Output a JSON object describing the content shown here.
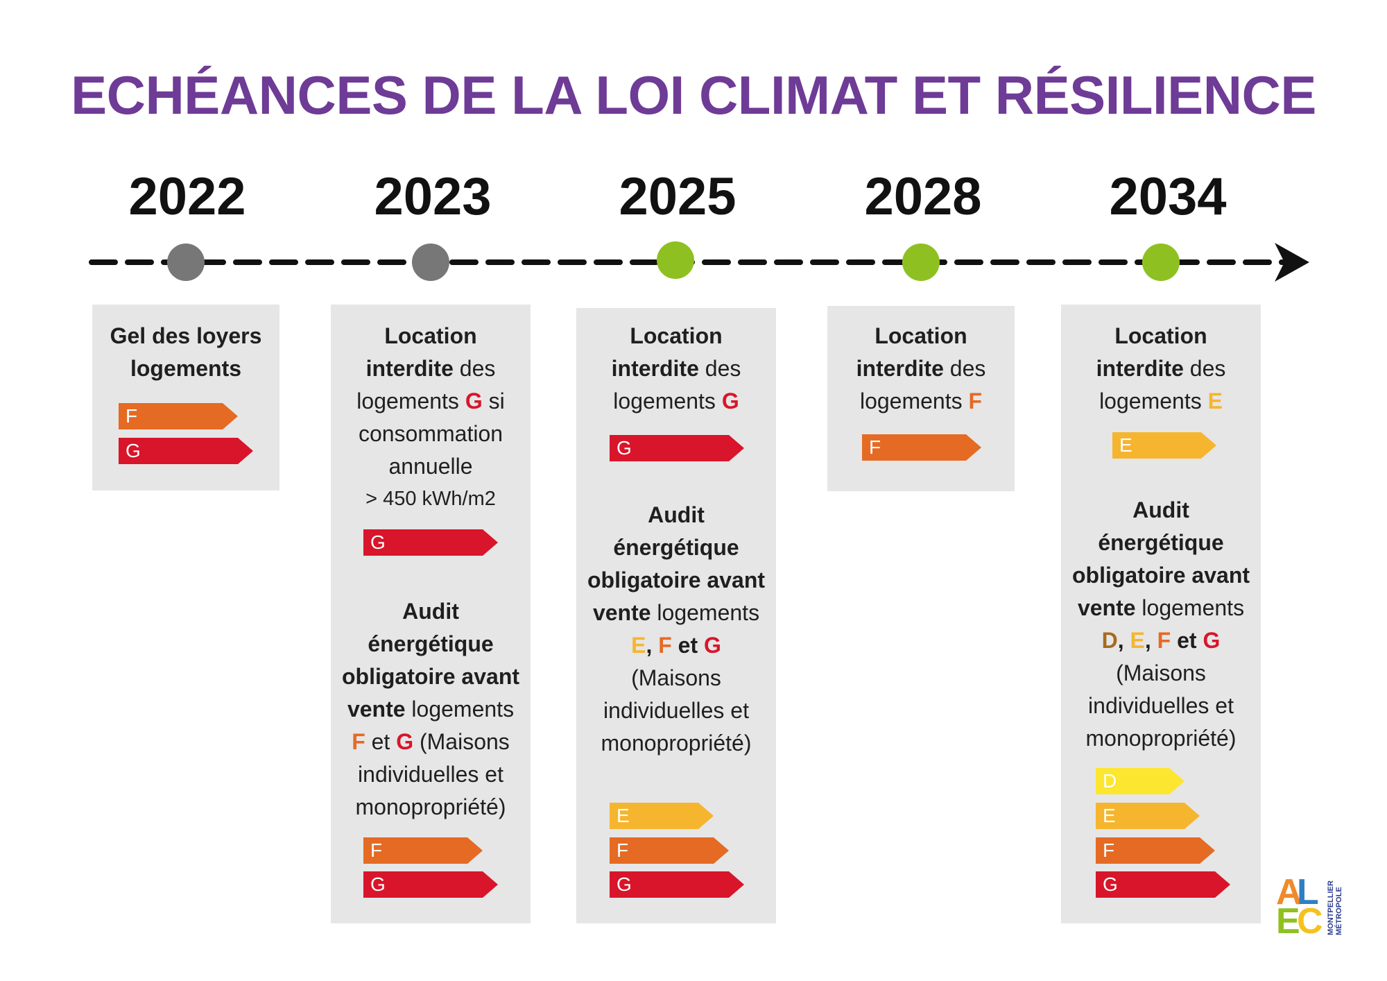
{
  "title": "ECHÉANCES DE LA LOI CLIMAT ET RÉSILIENCE",
  "colors": {
    "title": "#6e3b96",
    "milestone_past": "#777777",
    "milestone_future": "#8fc021",
    "box_bg": "#e6e6e6",
    "D": "#fce630",
    "E": "#f6b52e",
    "F": "#e56a24",
    "G": "#d8152a"
  },
  "years": [
    "2022",
    "2023",
    "2025",
    "2028",
    "2034"
  ],
  "col2022": {
    "heading": "Gel des loyers logements",
    "bars": [
      "F",
      "G"
    ]
  },
  "col2023": {
    "loc_title": "Location",
    "loc_bold": "interdite",
    "loc_rest": " des",
    "loc_line3_a": "logements ",
    "loc_letter": "G",
    "loc_line3_b": " si",
    "loc_line4": "consommation",
    "loc_line5": "annuelle",
    "loc_line6": "> 450 kWh/m2",
    "loc_bar": "G",
    "audit_1": "Audit",
    "audit_2": "énergétique",
    "audit_3": "obligatoire avant",
    "audit_4_bold": "vente",
    "audit_4_rest": " logements",
    "audit_5_F": "F",
    "audit_5_et": " et ",
    "audit_5_G": "G",
    "audit_5_rest": " (Maisons",
    "audit_6": "individuelles et",
    "audit_7": "monopropriété)",
    "audit_bars": [
      "F",
      "G"
    ]
  },
  "col2025": {
    "loc_title": "Location",
    "loc_bold": "interdite",
    "loc_rest": " des",
    "loc_line3_a": "logements ",
    "loc_letter": "G",
    "loc_bar": "G",
    "audit_1": "Audit",
    "audit_2": "énergétique",
    "audit_3": "obligatoire avant",
    "audit_4_bold": "vente",
    "audit_4_rest": " logements",
    "audit_5_E": "E",
    "audit_5_comma": ", ",
    "audit_5_F": "F",
    "audit_5_et": " et ",
    "audit_5_G": "G",
    "audit_6": "(Maisons",
    "audit_7": "individuelles et",
    "audit_8": "monopropriété)",
    "audit_bars": [
      "E",
      "F",
      "G"
    ]
  },
  "col2028": {
    "loc_title": "Location",
    "loc_bold": "interdite",
    "loc_rest": " des",
    "loc_line3_a": "logements ",
    "loc_letter": "F",
    "loc_bar": "F"
  },
  "col2034": {
    "loc_title": "Location",
    "loc_bold": "interdite",
    "loc_rest": " des",
    "loc_line3_a": "logements ",
    "loc_letter": "E",
    "loc_bar": "E",
    "audit_1": "Audit",
    "audit_2": "énergétique",
    "audit_3": "obligatoire avant",
    "audit_4_bold": "vente",
    "audit_4_rest": " logements",
    "audit_5_D": "D",
    "audit_5_c1": ", ",
    "audit_5_E": "E",
    "audit_5_c2": ", ",
    "audit_5_F": "F",
    "audit_5_et": " et ",
    "audit_5_G": "G",
    "audit_6": "(Maisons",
    "audit_7": "individuelles et",
    "audit_8": "monopropriété)",
    "audit_bars": [
      "D",
      "E",
      "F",
      "G"
    ]
  },
  "logo": {
    "letters": [
      "A",
      "L",
      "E",
      "C"
    ],
    "side_line1": "MONTPELLIER",
    "side_line2": "MÉTROPOLE"
  }
}
